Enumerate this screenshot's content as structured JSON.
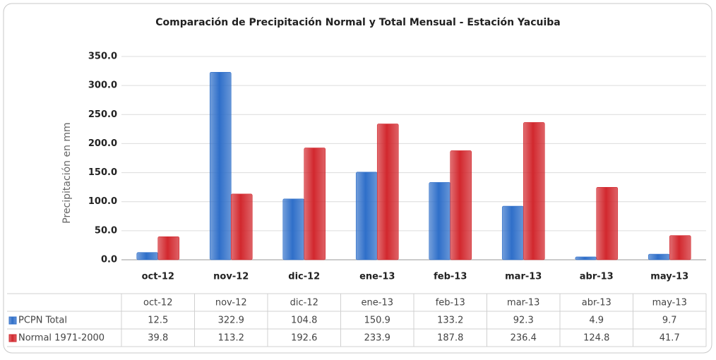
{
  "chart_data": {
    "type": "bar",
    "title": "Comparación  de Precipitación Normal y Total Mensual - Estación Yacuiba",
    "y_label": "Precipitación en mm",
    "categories": [
      "oct-12",
      "nov-12",
      "dic-12",
      "ene-13",
      "feb-13",
      "mar-13",
      "abr-13",
      "may-13"
    ],
    "series": [
      {
        "name": "PCPN Total",
        "color": "#2f6fc9",
        "values": [
          12.5,
          322.9,
          104.8,
          150.9,
          133.2,
          92.3,
          4.9,
          9.7
        ]
      },
      {
        "name": "Normal 1971-2000",
        "color": "#d2282e",
        "values": [
          39.8,
          113.2,
          192.6,
          233.9,
          187.8,
          236.4,
          124.8,
          41.7
        ]
      }
    ],
    "ylim": [
      0,
      350
    ],
    "yticks": [
      {
        "value": 0,
        "label": "0.0"
      },
      {
        "value": 50,
        "label": "50.0"
      },
      {
        "value": 100,
        "label": "100.0"
      },
      {
        "value": 150,
        "label": "150.0"
      },
      {
        "value": 200,
        "label": "200.0"
      },
      {
        "value": 250,
        "label": "250.0"
      },
      {
        "value": 300,
        "label": "300.0"
      },
      {
        "value": 350,
        "label": "350.0"
      }
    ],
    "grid": true,
    "data_table": true
  }
}
